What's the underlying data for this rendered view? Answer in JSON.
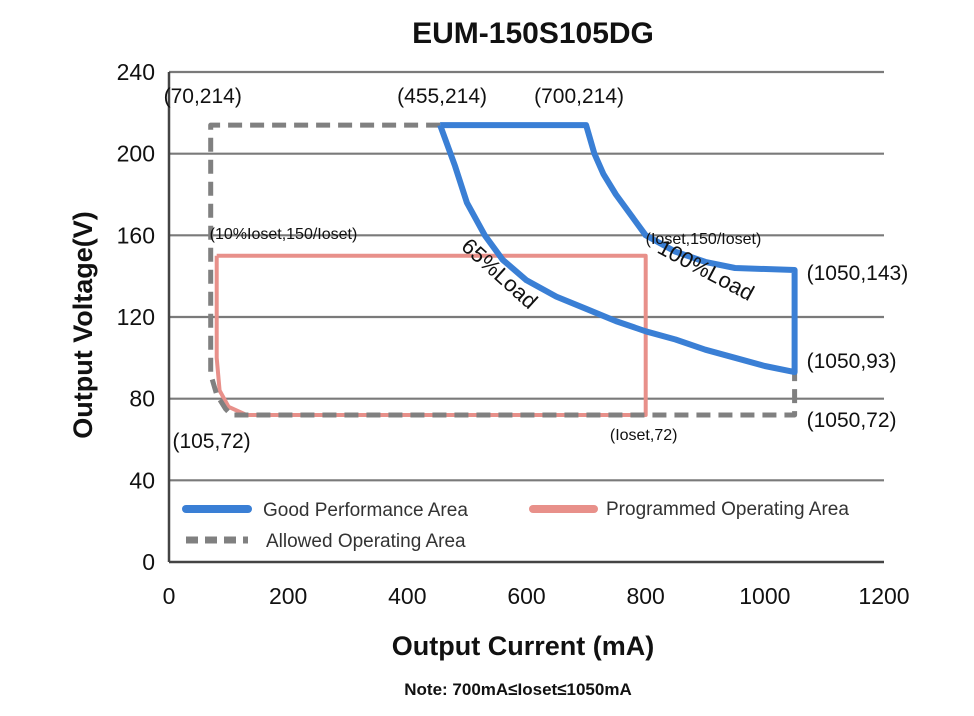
{
  "chart_data": {
    "type": "line",
    "title": "EUM-150S105DG",
    "xlabel": "Output Current (mA)",
    "ylabel": "Output Voltage(V)",
    "xlim": [
      0,
      1200
    ],
    "ylim": [
      0,
      240
    ],
    "x_ticks": [
      "0",
      "200",
      "400",
      "600",
      "800",
      "1000",
      "1200"
    ],
    "y_ticks": [
      "0",
      "40",
      "80",
      "120",
      "160",
      "200",
      "240"
    ],
    "grid": "horizontal",
    "legend_position": "bottom-left",
    "series": [
      {
        "name": "Good Performance Area",
        "color": "#3a7fd5",
        "style": "solid",
        "points": [
          [
            455,
            214
          ],
          [
            700,
            214
          ],
          [
            714,
            200
          ],
          [
            729,
            190
          ],
          [
            750,
            180
          ],
          [
            775,
            170
          ],
          [
            800,
            160
          ],
          [
            850,
            152
          ],
          [
            900,
            147
          ],
          [
            950,
            144
          ],
          [
            1050,
            143
          ],
          [
            1050,
            93
          ],
          [
            1000,
            96
          ],
          [
            950,
            100
          ],
          [
            900,
            104
          ],
          [
            850,
            109
          ],
          [
            800,
            113
          ],
          [
            750,
            118
          ],
          [
            700,
            124
          ],
          [
            650,
            130
          ],
          [
            600,
            138
          ],
          [
            560,
            148
          ],
          [
            530,
            160
          ],
          [
            500,
            176
          ],
          [
            480,
            194
          ],
          [
            455,
            214
          ]
        ]
      },
      {
        "name": "Programmed Operating Area",
        "color": "#e8908a",
        "style": "solid",
        "points": [
          [
            80,
            150
          ],
          [
            800,
            150
          ],
          [
            800,
            72
          ],
          [
            130,
            72
          ],
          [
            100,
            76
          ],
          [
            85,
            84
          ],
          [
            80,
            100
          ],
          [
            80,
            150
          ]
        ]
      },
      {
        "name": "Allowed Operating Area",
        "color": "#808080",
        "style": "dashed",
        "points": [
          [
            455,
            214
          ],
          [
            70,
            214
          ],
          [
            70,
            92
          ],
          [
            80,
            82
          ],
          [
            95,
            75
          ],
          [
            105,
            72
          ],
          [
            1050,
            72
          ],
          [
            1050,
            93
          ]
        ]
      }
    ],
    "annotations": [
      {
        "text": "(70,214)",
        "x": 70,
        "y": 214
      },
      {
        "text": "(455,214)",
        "x": 455,
        "y": 214
      },
      {
        "text": "(700,214)",
        "x": 700,
        "y": 214
      },
      {
        "text": "(10%Ioset,150/Ioset)",
        "x": 80,
        "y": 150
      },
      {
        "text": "(Ioset,150/Ioset)",
        "x": 800,
        "y": 150
      },
      {
        "text": "(1050,143)",
        "x": 1050,
        "y": 143
      },
      {
        "text": "(1050,93)",
        "x": 1050,
        "y": 93
      },
      {
        "text": "(1050,72)",
        "x": 1050,
        "y": 72
      },
      {
        "text": "(105,72)",
        "x": 105,
        "y": 72
      },
      {
        "text": "(Ioset,72)",
        "x": 800,
        "y": 72
      }
    ],
    "curve_labels": [
      {
        "text": "65%Load"
      },
      {
        "text": "100%Load"
      }
    ],
    "note": "Note:  700mA≤Ioset≤1050mA"
  }
}
